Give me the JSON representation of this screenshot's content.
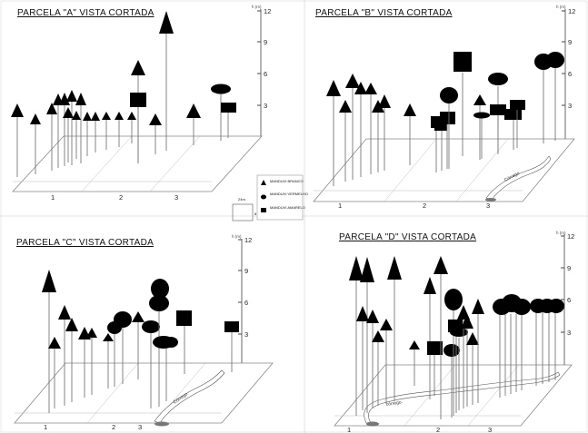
{
  "panels": [
    {
      "title": "PARCELA \"A\" VISTA CORTADA",
      "unit": "h (m)",
      "ticks": [
        "12",
        "9",
        "6",
        "3"
      ],
      "ground_ticks": [
        "1",
        "2",
        "3"
      ],
      "stream_label": ""
    },
    {
      "title": "PARCELA \"B\" VISTA CORTADA",
      "unit": "h (m)",
      "ticks": [
        "12",
        "9",
        "6",
        "3"
      ],
      "ground_ticks": [
        "1",
        "2",
        "3"
      ],
      "stream_label": "Córrego"
    },
    {
      "title": "PARCELA \"C\" VISTA CORTADA",
      "unit": "h (m)",
      "ticks": [
        "12",
        "9",
        "6",
        "3"
      ],
      "ground_ticks": [
        "1",
        "2",
        "3"
      ],
      "stream_label": "Córrego"
    },
    {
      "title": "PARCELA \"D\" VISTA CORTADA",
      "unit": "h (m)",
      "ticks": [
        "12",
        "9",
        "6",
        "3"
      ],
      "ground_ticks": [
        "1",
        "2",
        "3"
      ],
      "stream_label": "córrego"
    }
  ],
  "legend": {
    "scale_label": "24m",
    "scale_side": "8",
    "items": [
      {
        "symbol": "triangle",
        "label": "MANDUVI BRANCO"
      },
      {
        "symbol": "ellipse",
        "label": "MANDUVI VERMELHO"
      },
      {
        "symbol": "square",
        "label": "MANDUVI AMARELO"
      }
    ]
  }
}
